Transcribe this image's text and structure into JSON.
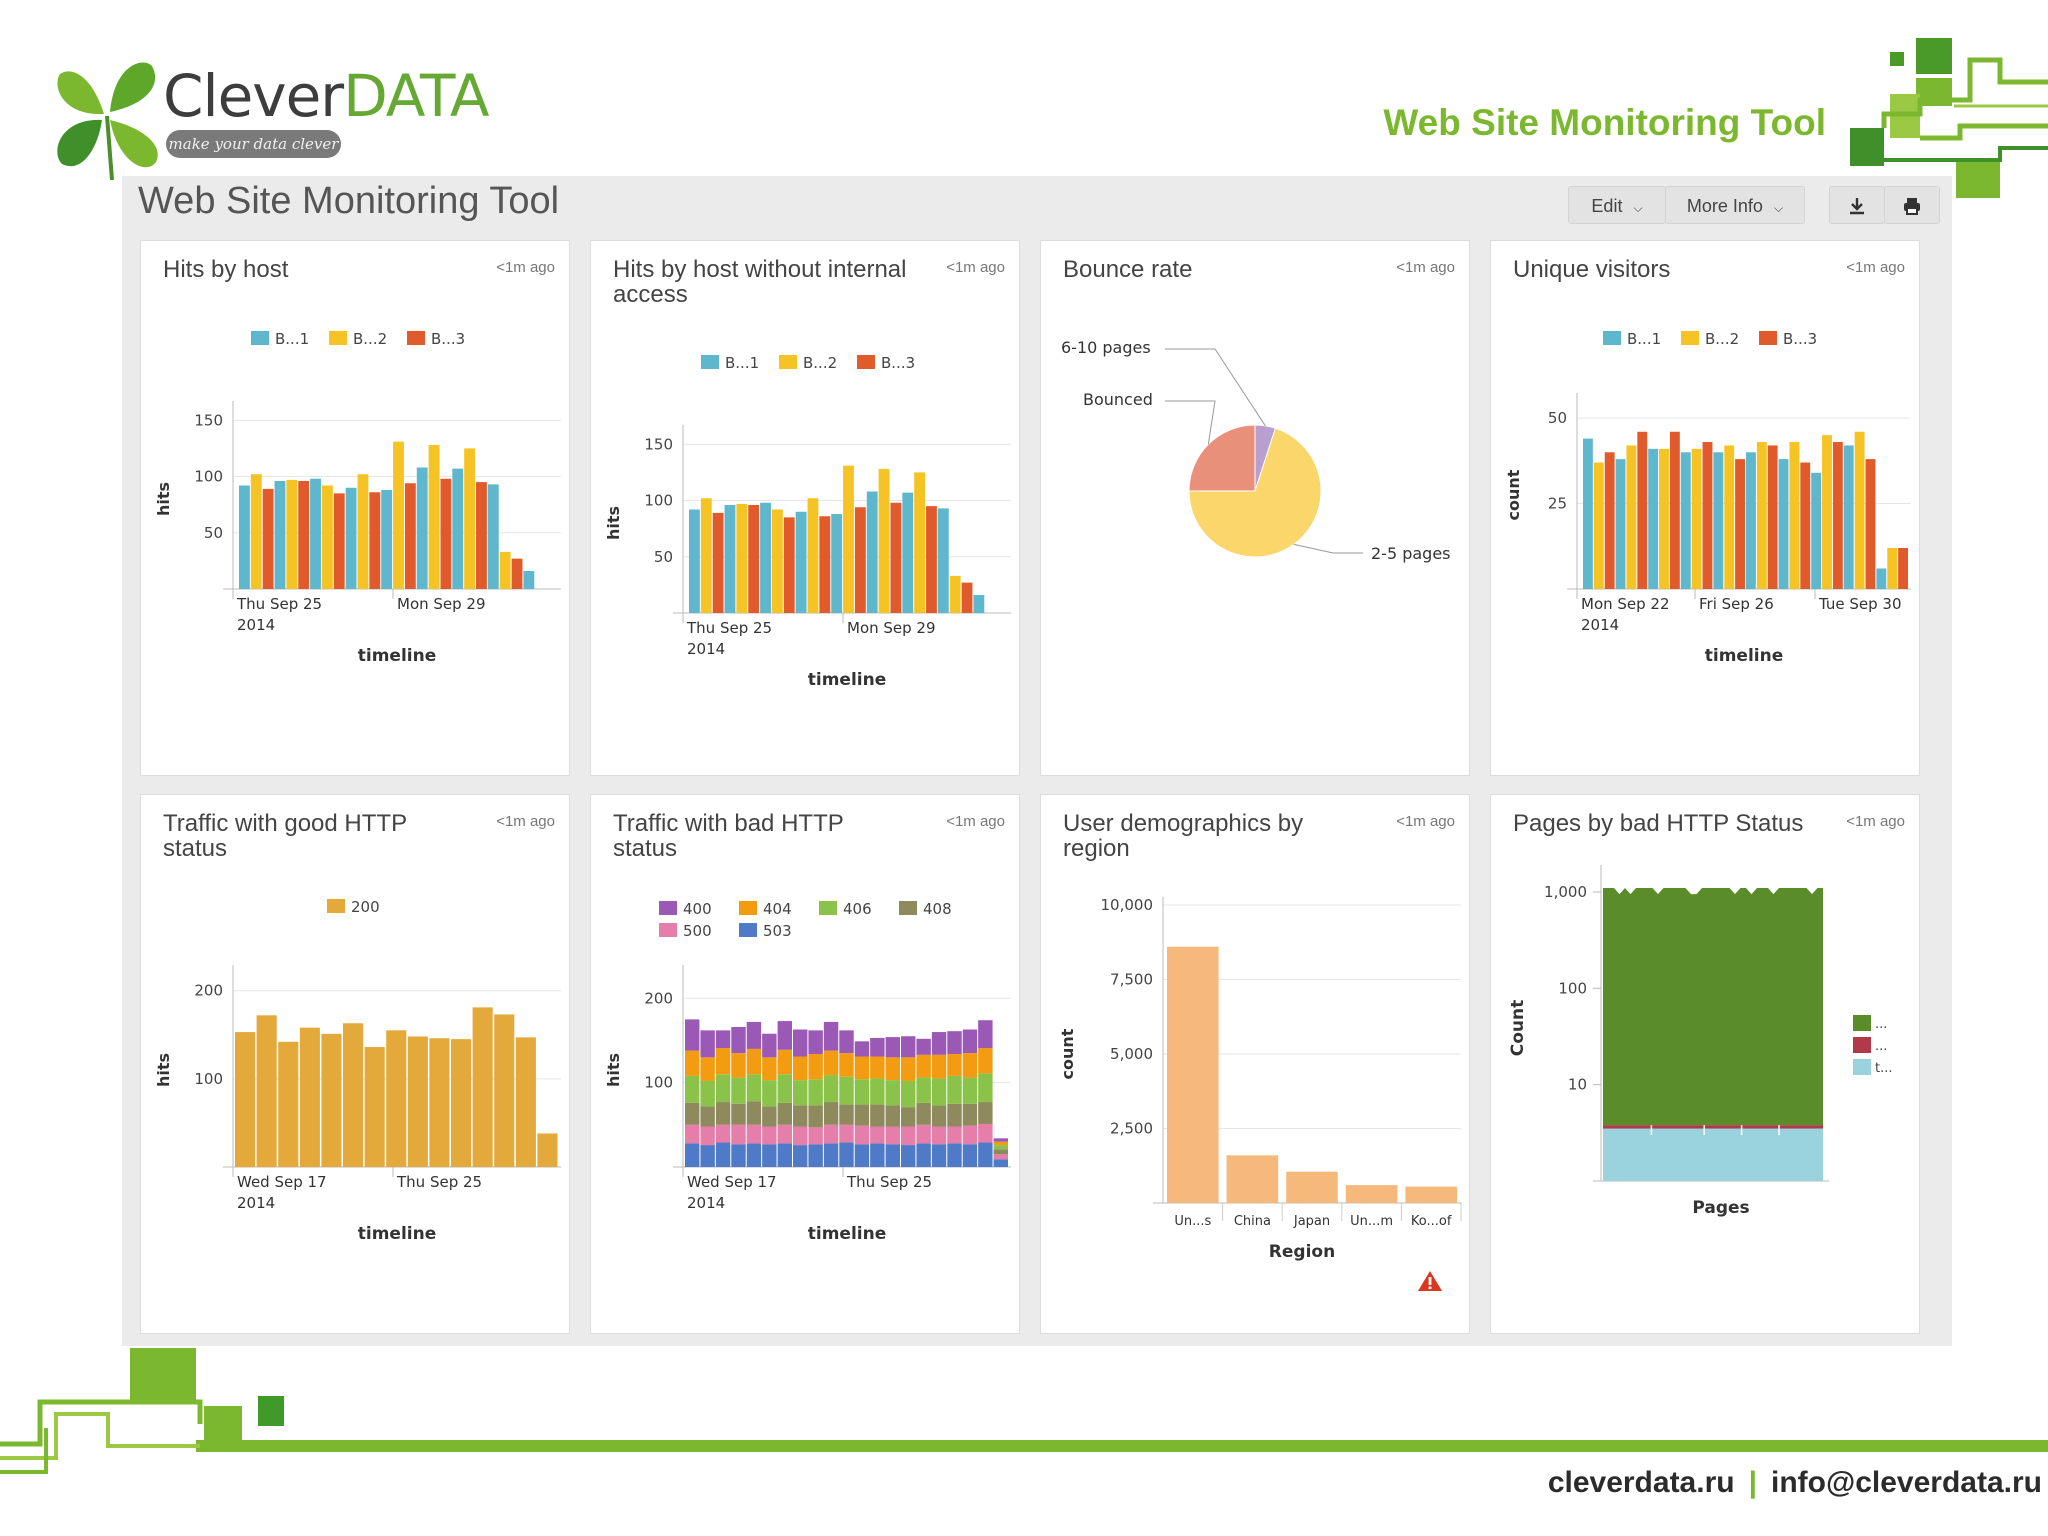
{
  "brand": {
    "name_part1": "Clever",
    "name_part2": "DATA",
    "tagline": "make your data clever",
    "slide_title": "Web Site Monitoring Tool",
    "green": "#7cb82f",
    "footer_site": "cleverdata.ru",
    "footer_sep": "|",
    "footer_email": "info@cleverdata.ru"
  },
  "dashboard": {
    "title": "Web Site Monitoring Tool",
    "edit_label": "Edit",
    "more_info_label": "More Info",
    "download_icon": "download-icon",
    "print_icon": "print-icon"
  },
  "panels": {
    "hits_by_host": {
      "title": "Hits by host",
      "ago": "<1m ago"
    },
    "hits_no_internal": {
      "title": "Hits by host without internal access",
      "ago": "<1m ago"
    },
    "bounce_rate": {
      "title": "Bounce rate",
      "ago": "<1m ago"
    },
    "unique_visitors": {
      "title": "Unique visitors",
      "ago": "<1m ago"
    },
    "good_http": {
      "title": "Traffic with good HTTP status",
      "ago": "<1m ago"
    },
    "bad_http": {
      "title": "Traffic with bad HTTP status",
      "ago": "<1m ago"
    },
    "demographics": {
      "title": "User demographics by region",
      "ago": "<1m ago"
    },
    "bad_status_pages": {
      "title": "Pages by bad HTTP Status",
      "ago": "<1m ago"
    }
  },
  "chart_data": [
    {
      "id": "hits_by_host",
      "type": "bar",
      "xlabel": "timeline",
      "ylabel": "hits",
      "yticks": [
        50,
        100,
        150
      ],
      "ylim": [
        0,
        160
      ],
      "xticks": [
        "Thu Sep 25",
        "2014",
        "Mon Sep 29"
      ],
      "legend": [
        "B...1",
        "B...2",
        "B...3"
      ],
      "colors": [
        "#5fb7cd",
        "#f5c324",
        "#e05a2c"
      ],
      "series": [
        {
          "name": "B...1",
          "values": [
            92,
            96,
            98,
            90,
            88,
            108,
            107,
            93,
            16
          ]
        },
        {
          "name": "B...2",
          "values": [
            102,
            97,
            92,
            102,
            131,
            128,
            125,
            33,
            0
          ]
        },
        {
          "name": "B...3",
          "values": [
            89,
            96,
            85,
            86,
            94,
            98,
            95,
            27,
            0
          ]
        }
      ]
    },
    {
      "id": "hits_no_internal",
      "type": "bar",
      "xlabel": "timeline",
      "ylabel": "hits",
      "yticks": [
        50,
        100,
        150
      ],
      "ylim": [
        0,
        160
      ],
      "xticks": [
        "Thu Sep 25",
        "2014",
        "Mon Sep 29"
      ],
      "legend": [
        "B...1",
        "B...2",
        "B...3"
      ],
      "colors": [
        "#5fb7cd",
        "#f5c324",
        "#e05a2c"
      ],
      "series": [
        {
          "name": "B...1",
          "values": [
            92,
            96,
            98,
            90,
            88,
            108,
            107,
            93,
            16
          ]
        },
        {
          "name": "B...2",
          "values": [
            102,
            97,
            92,
            102,
            131,
            128,
            125,
            33,
            0
          ]
        },
        {
          "name": "B...3",
          "values": [
            89,
            96,
            85,
            86,
            94,
            98,
            95,
            27,
            0
          ]
        }
      ]
    },
    {
      "id": "bounce_rate",
      "type": "pie",
      "labels": [
        "2-5 pages",
        "Bounced",
        "6-10 pages"
      ],
      "values": [
        70,
        25,
        5
      ],
      "colors": [
        "#fad66b",
        "#e8907a",
        "#b99fd0"
      ]
    },
    {
      "id": "unique_visitors",
      "type": "bar",
      "xlabel": "timeline",
      "ylabel": "count",
      "yticks": [
        25,
        50
      ],
      "ylim": [
        0,
        55
      ],
      "xticks": [
        "Mon Sep 22",
        "2014",
        "Fri Sep 26",
        "Tue Sep 30"
      ],
      "legend": [
        "B...1",
        "B...2",
        "B...3"
      ],
      "colors": [
        "#5fb7cd",
        "#f5c324",
        "#e05a2c"
      ],
      "series": [
        {
          "name": "B...1",
          "values": [
            44,
            38,
            41,
            40,
            40,
            40,
            38,
            34,
            42,
            6
          ]
        },
        {
          "name": "B...2",
          "values": [
            37,
            42,
            41,
            41,
            42,
            43,
            43,
            45,
            46,
            12
          ]
        },
        {
          "name": "B...3",
          "values": [
            40,
            46,
            46,
            43,
            38,
            42,
            37,
            43,
            38,
            12
          ]
        }
      ]
    },
    {
      "id": "good_http",
      "type": "bar",
      "xlabel": "timeline",
      "ylabel": "hits",
      "yticks": [
        100,
        200
      ],
      "ylim": [
        0,
        220
      ],
      "xticks": [
        "Wed Sep 17",
        "2014",
        "Thu Sep 25"
      ],
      "legend": [
        "200"
      ],
      "colors": [
        "#e3a93a"
      ],
      "series": [
        {
          "name": "200",
          "values": [
            153,
            172,
            142,
            158,
            151,
            163,
            136,
            155,
            148,
            146,
            145,
            181,
            173,
            147,
            38
          ]
        }
      ]
    },
    {
      "id": "bad_http",
      "type": "bar",
      "stacked": true,
      "xlabel": "timeline",
      "ylabel": "hits",
      "yticks": [
        100,
        200
      ],
      "ylim": [
        0,
        230
      ],
      "xticks": [
        "Wed Sep 17",
        "2014",
        "Thu Sep 25"
      ],
      "legend": [
        "400",
        "404",
        "406",
        "408",
        "500",
        "503"
      ],
      "colors": [
        "#9b59b6",
        "#f39c12",
        "#8bc34a",
        "#8e8a5e",
        "#e67eaa",
        "#4e7ac7"
      ],
      "series": [
        {
          "name": "503",
          "values": [
            28,
            26,
            29,
            27,
            28,
            27,
            28,
            26,
            27,
            28,
            29,
            27,
            28,
            27,
            26,
            28,
            27,
            28,
            27,
            29,
            9
          ]
        },
        {
          "name": "500",
          "values": [
            22,
            22,
            21,
            23,
            22,
            21,
            22,
            22,
            20,
            22,
            21,
            22,
            20,
            21,
            22,
            22,
            21,
            20,
            22,
            22,
            6
          ]
        },
        {
          "name": "408",
          "values": [
            26,
            24,
            27,
            25,
            28,
            24,
            26,
            25,
            26,
            27,
            24,
            25,
            26,
            25,
            23,
            26,
            25,
            27,
            26,
            26,
            6
          ]
        },
        {
          "name": "406",
          "values": [
            32,
            30,
            33,
            31,
            32,
            31,
            34,
            30,
            31,
            32,
            33,
            30,
            31,
            30,
            31,
            30,
            32,
            33,
            31,
            34,
            5
          ]
        },
        {
          "name": "404",
          "values": [
            30,
            28,
            31,
            29,
            30,
            27,
            29,
            28,
            30,
            29,
            28,
            27,
            26,
            27,
            28,
            27,
            28,
            26,
            29,
            30,
            4
          ]
        },
        {
          "name": "400",
          "values": [
            37,
            32,
            21,
            31,
            32,
            28,
            34,
            32,
            28,
            34,
            27,
            18,
            22,
            24,
            25,
            19,
            27,
            27,
            28,
            33,
            4
          ]
        }
      ]
    },
    {
      "id": "demographics",
      "type": "bar",
      "xlabel": "Region",
      "ylabel": "count",
      "yticks": [
        2500,
        5000,
        7500,
        10000
      ],
      "yticklabels": [
        "2,500",
        "5,000",
        "7,500",
        "10,000"
      ],
      "ylim": [
        0,
        10000
      ],
      "categories": [
        "Un...s",
        "China",
        "Japan",
        "Un...m",
        "Ko...of"
      ],
      "values": [
        8600,
        1600,
        1050,
        600,
        550
      ],
      "colors": [
        "#f7b97b"
      ]
    },
    {
      "id": "bad_status_pages",
      "type": "area",
      "xlabel": "Pages",
      "ylabel": "Count",
      "yscale": "log",
      "yticks": [
        10,
        100,
        1000
      ],
      "yticklabels": [
        "10",
        "100",
        "1,000"
      ],
      "legend": [
        "...",
        "...",
        "t..."
      ],
      "colors": [
        "#5b8c2a",
        "#b03a4a",
        "#9ad3de"
      ]
    }
  ],
  "warning_icon": "warning-icon"
}
